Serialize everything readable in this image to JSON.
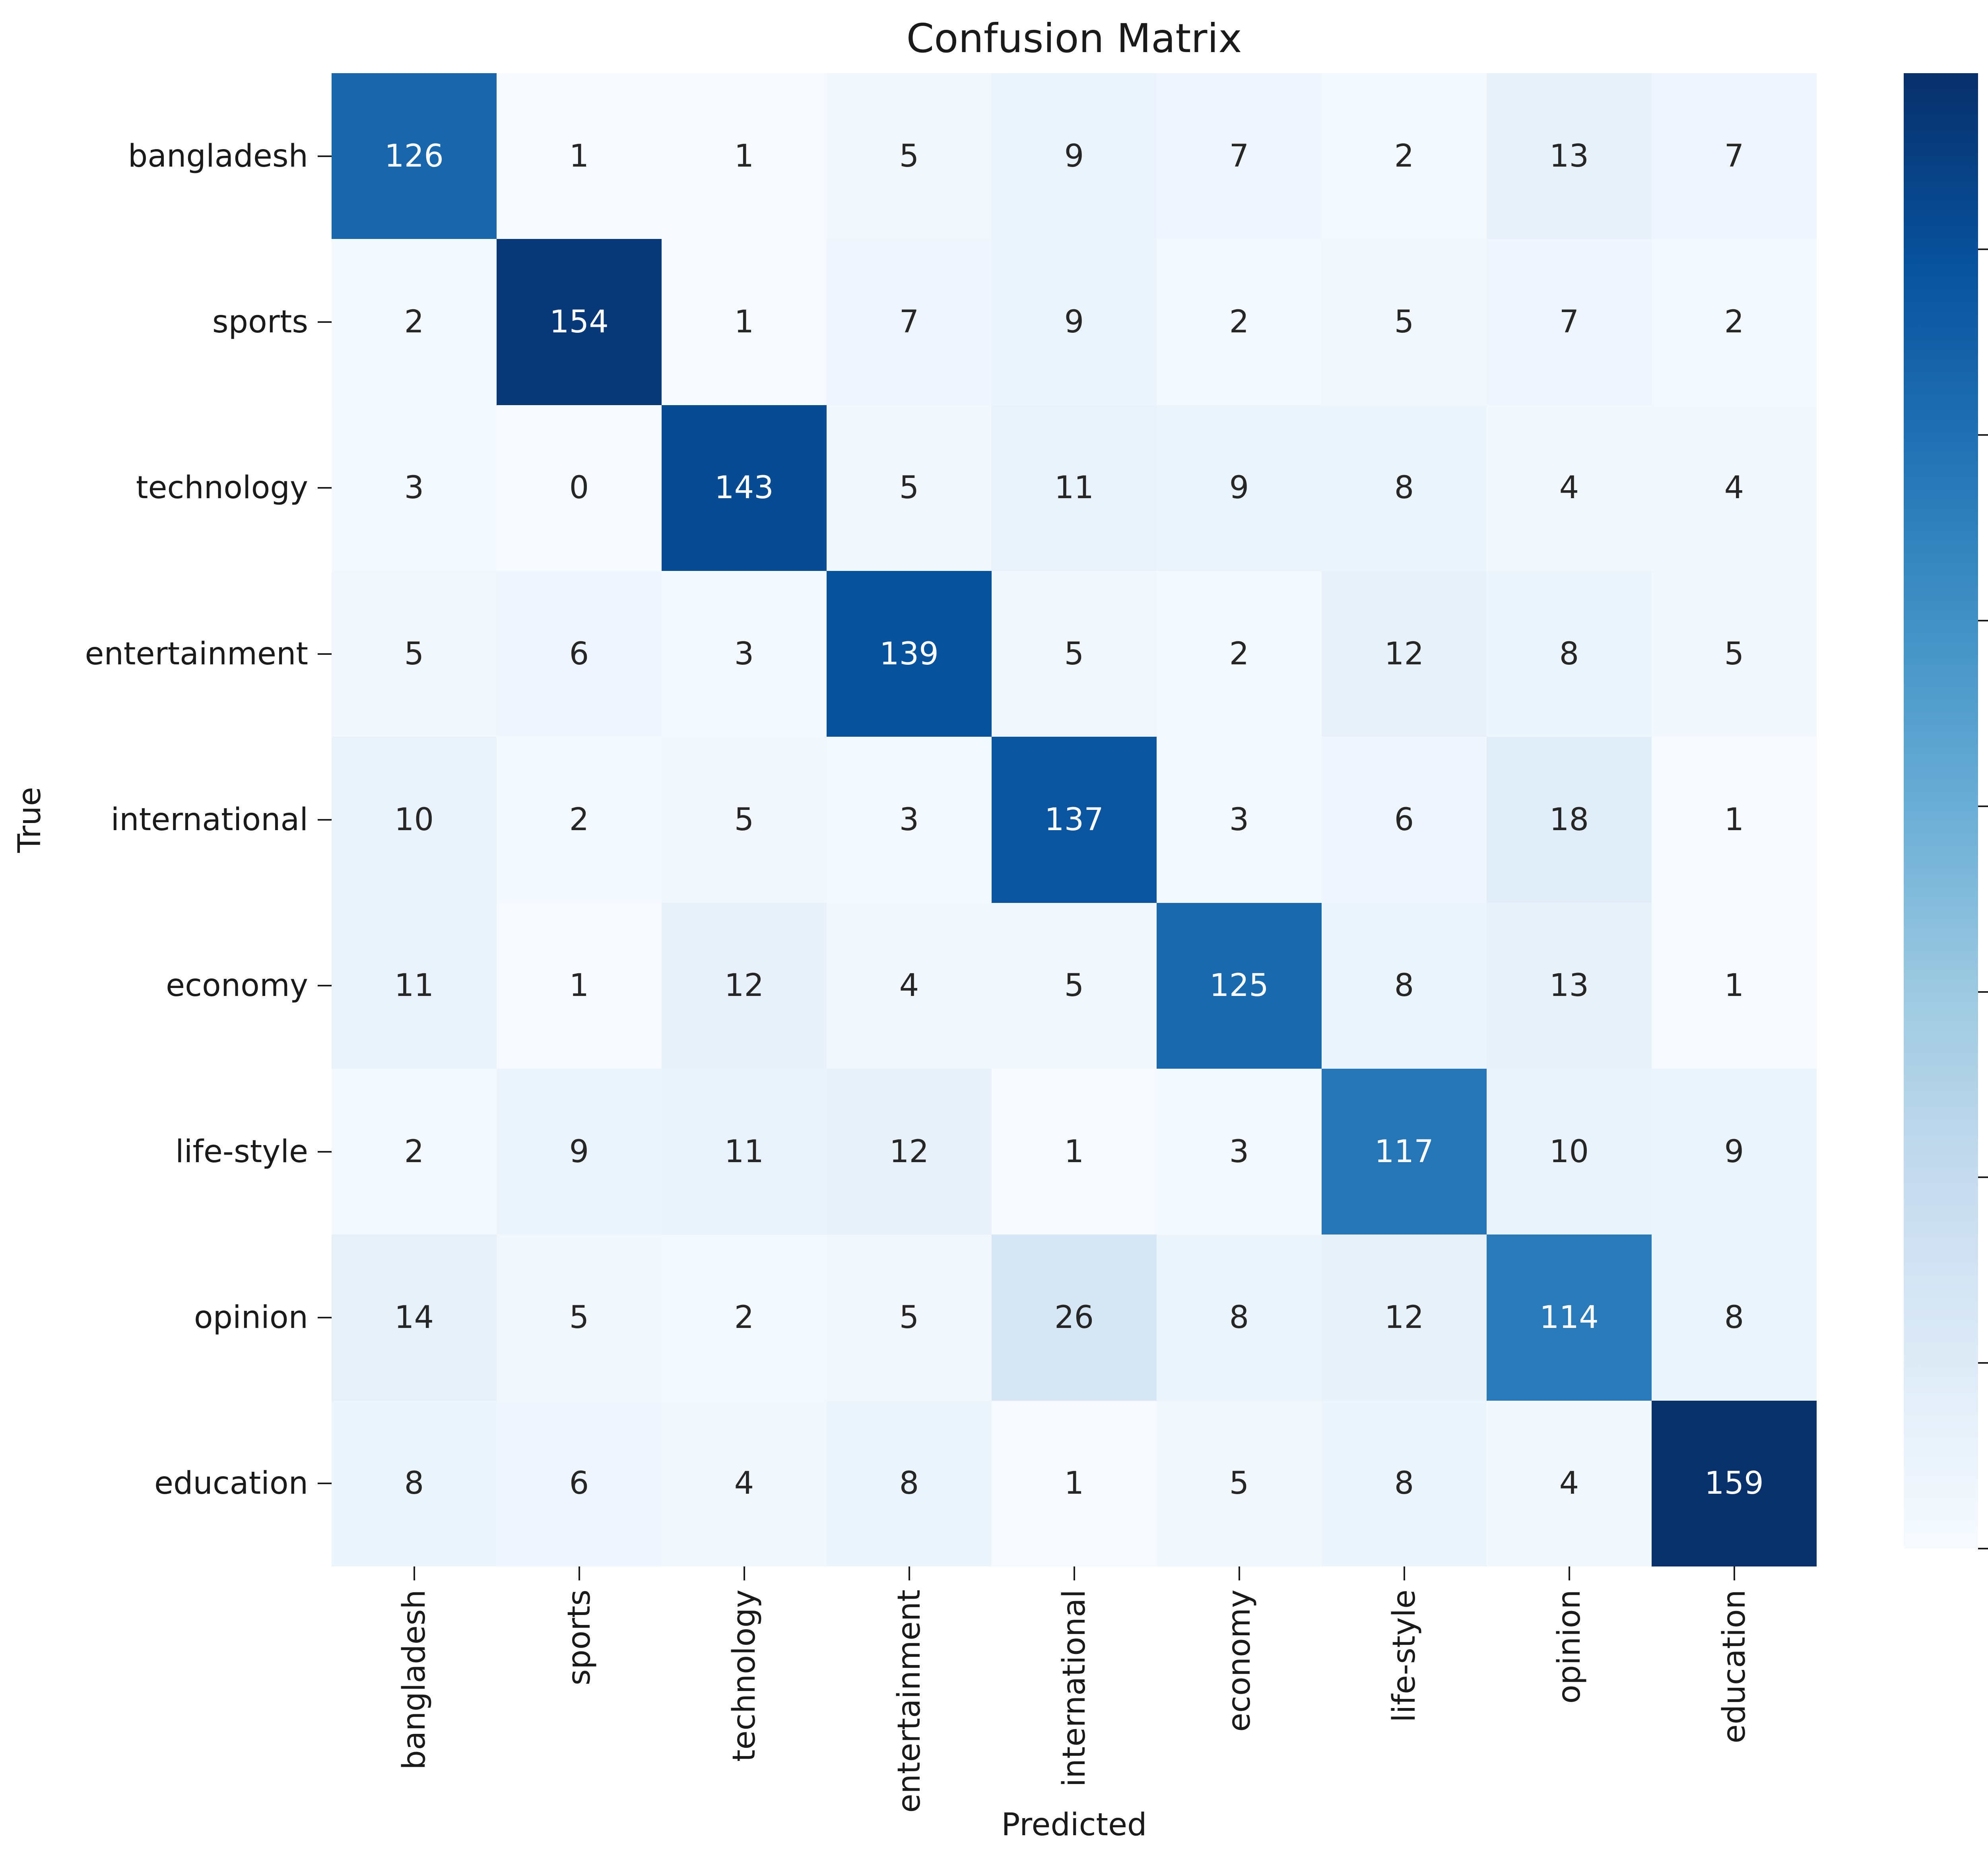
{
  "chart_data": {
    "type": "heatmap",
    "title": "Confusion Matrix",
    "xlabel": "Predicted",
    "ylabel": "True",
    "x_categories": [
      "bangladesh",
      "sports",
      "technology",
      "entertainment",
      "international",
      "economy",
      "life-style",
      "opinion",
      "education"
    ],
    "y_categories": [
      "bangladesh",
      "sports",
      "technology",
      "entertainment",
      "international",
      "economy",
      "life-style",
      "opinion",
      "education"
    ],
    "matrix": [
      [
        126,
        1,
        1,
        5,
        9,
        7,
        2,
        13,
        7
      ],
      [
        2,
        154,
        1,
        7,
        9,
        2,
        5,
        7,
        2
      ],
      [
        3,
        0,
        143,
        5,
        11,
        9,
        8,
        4,
        4
      ],
      [
        5,
        6,
        3,
        139,
        5,
        2,
        12,
        8,
        5
      ],
      [
        10,
        2,
        5,
        3,
        137,
        3,
        6,
        18,
        1
      ],
      [
        11,
        1,
        12,
        4,
        5,
        125,
        8,
        13,
        1
      ],
      [
        2,
        9,
        11,
        12,
        1,
        3,
        117,
        10,
        9
      ],
      [
        14,
        5,
        2,
        5,
        26,
        8,
        12,
        114,
        8
      ],
      [
        8,
        6,
        4,
        8,
        1,
        5,
        8,
        4,
        159
      ]
    ],
    "vmin": 0,
    "vmax": 159,
    "colormap": "Blues",
    "colormap_anchors": [
      "#f7fbff",
      "#deebf7",
      "#c6dbef",
      "#9ecae1",
      "#6baed6",
      "#4292c6",
      "#2171b5",
      "#08519c",
      "#08306b"
    ],
    "colorbar_ticks": [
      0,
      20,
      40,
      60,
      80,
      100,
      120,
      140
    ],
    "colorbar_position": "right",
    "grid": false,
    "background": "#ffffff",
    "tick_label_color": "#1a1a1a",
    "annot_color_dark_cells": "#ffffff",
    "annot_color_light_cells": "#262626"
  }
}
